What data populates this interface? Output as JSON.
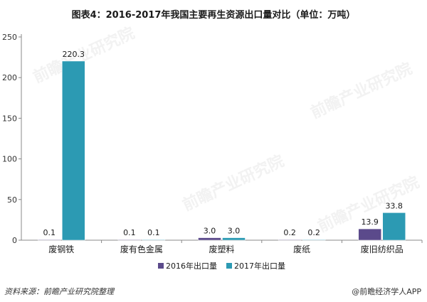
{
  "chart_data": {
    "type": "bar",
    "title": "图表4：2016-2017年我国主要再生资源出口量对比（单位：万吨）",
    "categories": [
      "废钢铁",
      "废有色金属",
      "废塑料",
      "废纸",
      "废旧纺织品"
    ],
    "series": [
      {
        "name": "2016年出口量",
        "values": [
          0.1,
          0.1,
          3.0,
          0.2,
          13.9
        ],
        "labels": [
          "0.1",
          "0.1",
          "3.0",
          "0.2",
          "13.9"
        ],
        "color": "#5b4a8b"
      },
      {
        "name": "2017年出口量",
        "values": [
          220.3,
          0.1,
          3.0,
          0.2,
          33.8
        ],
        "labels": [
          "220.3",
          "0.1",
          "3.0",
          "0.2",
          "33.8"
        ],
        "color": "#2c9ab3"
      }
    ],
    "ylim": [
      0,
      250
    ],
    "yticks": [
      0,
      50,
      100,
      150,
      200,
      250
    ],
    "grid": false,
    "legend_position": "bottom"
  },
  "footer": {
    "source": "资料来源：前瞻产业研究院整理",
    "credit": "@前瞻经济学人APP"
  },
  "watermark_text": "前瞻产业研究院"
}
